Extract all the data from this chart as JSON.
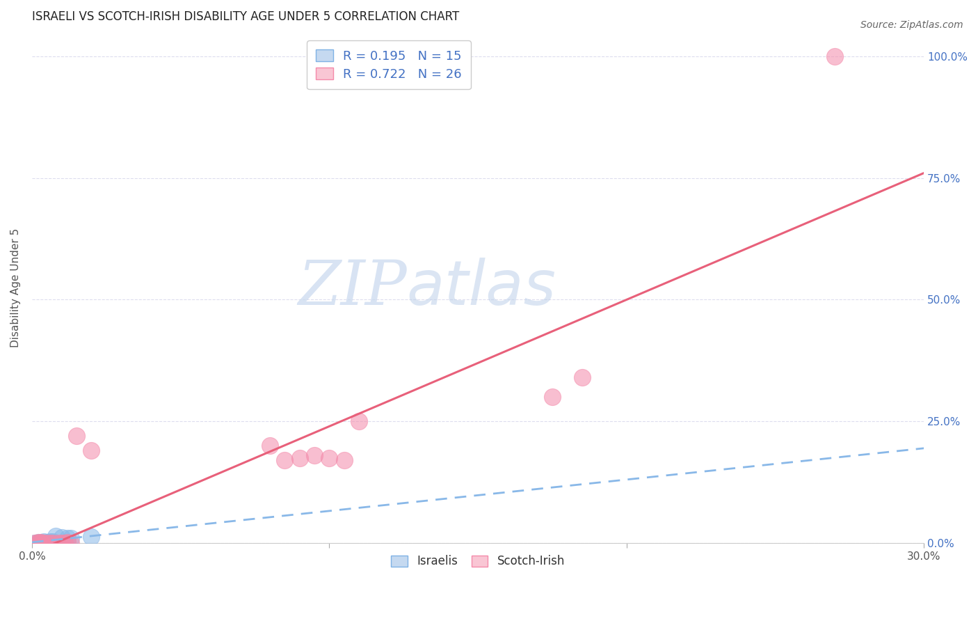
{
  "title": "ISRAELI VS SCOTCH-IRISH DISABILITY AGE UNDER 5 CORRELATION CHART",
  "source": "Source: ZipAtlas.com",
  "ylabel": "Disability Age Under 5",
  "x_min": 0.0,
  "x_max": 0.3,
  "y_min": 0.0,
  "y_max": 1.05,
  "legend_entries": [
    {
      "label": "R = 0.195   N = 15",
      "color": "#aac4e8"
    },
    {
      "label": "R = 0.722   N = 26",
      "color": "#f4a7b9"
    }
  ],
  "legend_label_israelis": "Israelis",
  "legend_label_scotchirish": "Scotch-Irish",
  "israelis_color": "#89b8e8",
  "scotchirish_color": "#f48aaa",
  "israelis_x": [
    0.001,
    0.002,
    0.002,
    0.003,
    0.003,
    0.004,
    0.004,
    0.005,
    0.006,
    0.007,
    0.008,
    0.01,
    0.012,
    0.013,
    0.02
  ],
  "israelis_y": [
    0.001,
    0.001,
    0.002,
    0.001,
    0.002,
    0.001,
    0.003,
    0.002,
    0.004,
    0.003,
    0.015,
    0.012,
    0.01,
    0.011,
    0.013
  ],
  "scotchirish_x": [
    0.001,
    0.002,
    0.002,
    0.003,
    0.003,
    0.004,
    0.005,
    0.006,
    0.007,
    0.009,
    0.01,
    0.011,
    0.012,
    0.013,
    0.015,
    0.02,
    0.08,
    0.085,
    0.09,
    0.095,
    0.1,
    0.105,
    0.11,
    0.175,
    0.185,
    0.27
  ],
  "scotchirish_y": [
    0.001,
    0.001,
    0.002,
    0.001,
    0.002,
    0.001,
    0.001,
    0.001,
    0.001,
    0.001,
    0.001,
    0.001,
    0.002,
    0.001,
    0.22,
    0.19,
    0.2,
    0.17,
    0.175,
    0.18,
    0.175,
    0.17,
    0.25,
    0.3,
    0.34,
    1.0
  ],
  "pink_line_x0": 0.0,
  "pink_line_y0": -0.02,
  "pink_line_x1": 0.3,
  "pink_line_y1": 0.76,
  "blue_line_x0": 0.0,
  "blue_line_y0": 0.002,
  "blue_line_x1": 0.3,
  "blue_line_y1": 0.195,
  "grid_color": "#ddddee",
  "background_color": "#ffffff",
  "watermark_zip": "ZIP",
  "watermark_atlas": "atlas",
  "title_color": "#222222",
  "axis_label_color": "#555555",
  "right_axis_color": "#4472c4"
}
